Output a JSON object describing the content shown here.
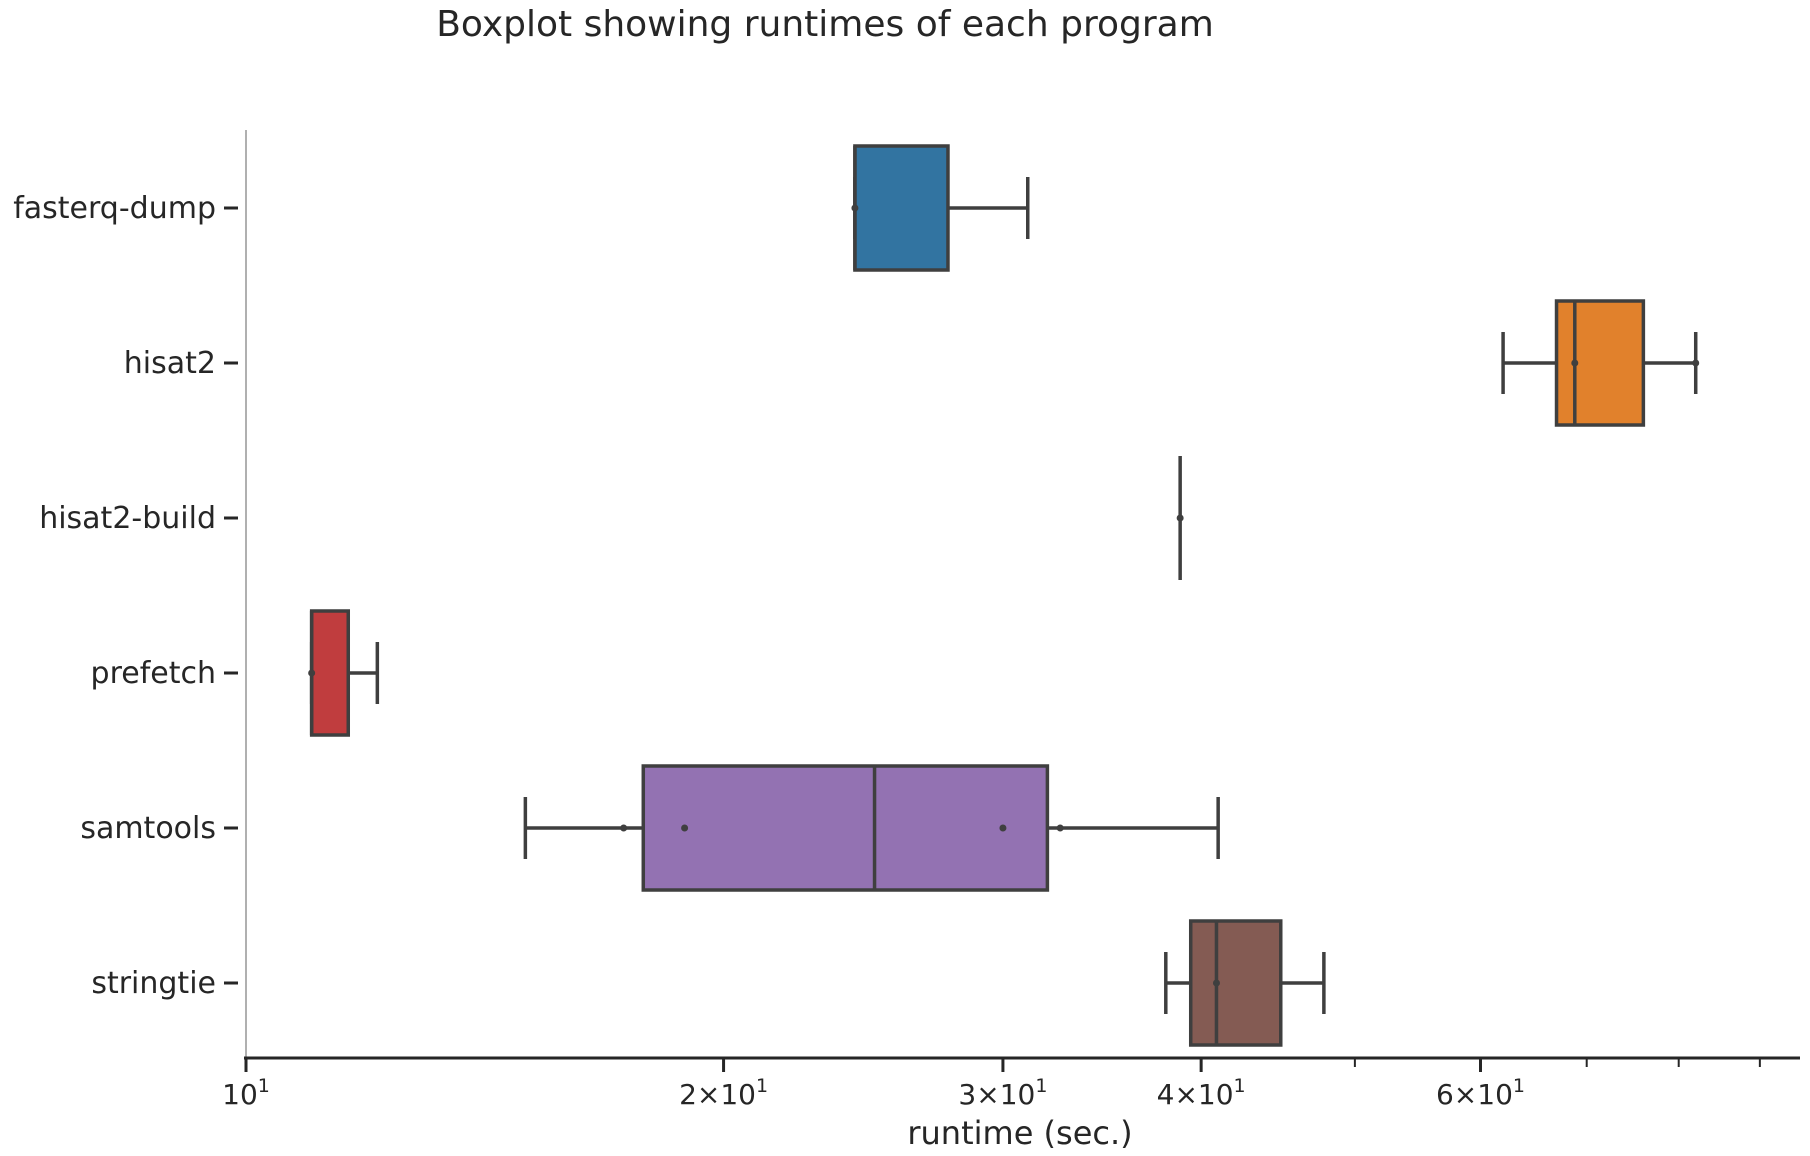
{
  "chart_data": {
    "type": "boxplot",
    "title": "Boxplot showing runtimes of each program",
    "xlabel": "runtime (sec.)",
    "ylabel": "",
    "x_scale": "log",
    "xlim": [
      10,
      92
    ],
    "x_major_ticks": [
      {
        "value": 10,
        "base": "10",
        "exp": "1"
      },
      {
        "value": 20,
        "base": "2×10",
        "exp": "1"
      },
      {
        "value": 30,
        "base": "3×10",
        "exp": "1"
      },
      {
        "value": 40,
        "base": "4×10",
        "exp": "1"
      },
      {
        "value": 60,
        "base": "6×10",
        "exp": "1"
      }
    ],
    "x_minor_ticks": [
      50,
      70,
      80,
      90
    ],
    "grid": false,
    "series": [
      {
        "name": "fasterq-dump",
        "color": "#3274a1",
        "whisker_low": 24.2,
        "q1": 24.2,
        "median": 24.2,
        "q3": 27.7,
        "whisker_high": 31.1,
        "points": [
          24.2
        ]
      },
      {
        "name": "hisat2",
        "color": "#e1812c",
        "whisker_low": 62.0,
        "q1": 67.0,
        "median": 68.8,
        "q3": 76.0,
        "whisker_high": 82.0,
        "points": [
          68.8,
          82.0
        ]
      },
      {
        "name": "hisat2-build",
        "color": "#3a923a",
        "whisker_low": 38.8,
        "q1": 38.8,
        "median": 38.8,
        "q3": 38.8,
        "whisker_high": 38.8,
        "points": [
          38.8
        ]
      },
      {
        "name": "prefetch",
        "color": "#c03d3e",
        "whisker_low": 11.0,
        "q1": 11.0,
        "median": 11.0,
        "q3": 11.6,
        "whisker_high": 12.1,
        "points": [
          11.0
        ]
      },
      {
        "name": "samtools",
        "color": "#9372b2",
        "whisker_low": 15.0,
        "q1": 17.8,
        "median": 24.9,
        "q3": 32.0,
        "whisker_high": 41.0,
        "points": [
          17.3,
          18.9,
          30.0,
          32.6
        ]
      },
      {
        "name": "stringtie",
        "color": "#845b53",
        "whisker_low": 38.0,
        "q1": 39.4,
        "median": 40.9,
        "q3": 44.9,
        "whisker_high": 47.8,
        "points": [
          40.9
        ]
      }
    ]
  }
}
